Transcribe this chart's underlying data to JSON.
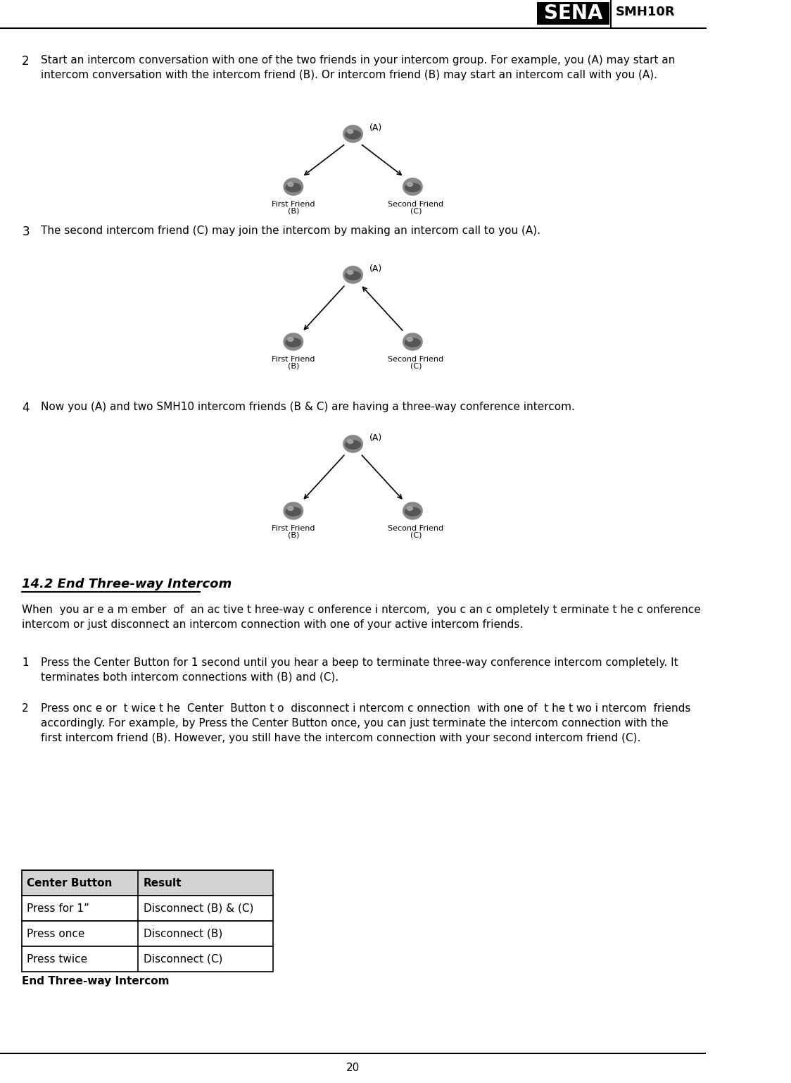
{
  "page_number": "20",
  "header_text": "SMH10R",
  "bg_color": "#ffffff",
  "border_color": "#000000",
  "section2_text": "Start an intercom conversation with one of the two friends in your intercom group. For example, you (A) may start an\nintercom conversation with the intercom friend (B). Or intercom friend (B) may start an intercom call with you (A).",
  "section3_text": "The second intercom friend (C) may join the intercom by making an intercom call to you (A).",
  "section4_text": "Now you (A) and two SMH10 intercom friends (B & C) are having a three-way conference intercom.",
  "section14_title": "14.2 End Three-way Intercom",
  "section14_intro": "When  you ar e a m ember  of  an ac tive t hree-way c onference i ntercom,  you c an c ompletely t erminate t he c onference\nintercom or just disconnect an intercom connection with one of your active intercom friends.",
  "step1_text": "Press the Center Button for 1 second until you hear a beep to terminate three-way conference intercom completely. It\nterminates both intercom connections with (B) and (C).",
  "step2_text": "Press onc e or  t wice t he  Center  Button t o  disconnect i ntercom c onnection  with one of  t he t wo i ntercom  friends\naccordingly. For example, by Press the Center Button once, you can just terminate the intercom connection with the\nfirst intercom friend (B). However, you still have the intercom connection with your second intercom friend (C).",
  "table_header": [
    "Center Button",
    "Result"
  ],
  "table_rows": [
    [
      "Press for 1”",
      "Disconnect (B) & (C)"
    ],
    [
      "Press once",
      "Disconnect (B)"
    ],
    [
      "Press twice",
      "Disconnect (C)"
    ]
  ],
  "table_caption": "End Three-way Intercom",
  "table_header_bg": "#d3d3d3",
  "table_row_bg": "#ffffff",
  "section_num2": "2",
  "section_num3": "3",
  "section_num4": "4",
  "step_num1": "1",
  "step_num2": "2",
  "sena_logo_text": "SENA",
  "sena_logo_bg": "#000000",
  "sena_logo_fg": "#ffffff"
}
